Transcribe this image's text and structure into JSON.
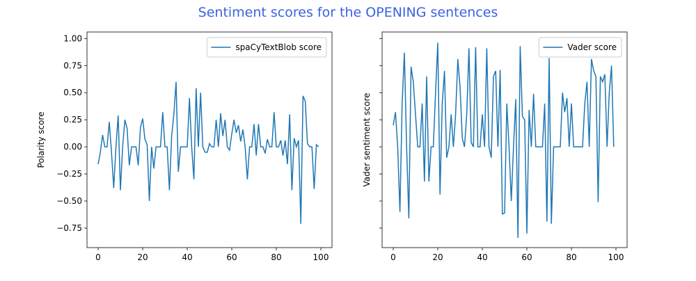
{
  "title": "Sentiment scores for the OPENING sentences",
  "title_color": "#3a63e0",
  "chart_data": [
    {
      "type": "line",
      "ylabel": "Polarity score",
      "x": [
        0,
        1,
        2,
        3,
        4,
        5,
        6,
        7,
        8,
        9,
        10,
        11,
        12,
        13,
        14,
        15,
        16,
        17,
        18,
        19,
        20,
        21,
        22,
        23,
        24,
        25,
        26,
        27,
        28,
        29,
        30,
        31,
        32,
        33,
        34,
        35,
        36,
        37,
        38,
        39,
        40,
        41,
        42,
        43,
        44,
        45,
        46,
        47,
        48,
        49,
        50,
        51,
        52,
        53,
        54,
        55,
        56,
        57,
        58,
        59,
        60,
        61,
        62,
        63,
        64,
        65,
        66,
        67,
        68,
        69,
        70,
        71,
        72,
        73,
        74,
        75,
        76,
        77,
        78,
        79,
        80,
        81,
        82,
        83,
        84,
        85,
        86,
        87,
        88,
        89,
        90,
        91,
        92,
        93,
        94,
        95,
        96,
        97,
        98,
        99
      ],
      "series": [
        {
          "name": "spaCyTextBlob score",
          "color": "#1f77b4",
          "values": [
            -0.16,
            -0.05,
            0.11,
            0.0,
            0.0,
            0.23,
            -0.05,
            -0.38,
            0.0,
            0.29,
            -0.4,
            0.0,
            0.25,
            0.17,
            -0.17,
            0.0,
            0.0,
            0.0,
            -0.17,
            0.18,
            0.26,
            0.07,
            0.02,
            -0.5,
            0.0,
            -0.2,
            0.0,
            0.0,
            0.0,
            0.32,
            0.0,
            0.0,
            -0.4,
            0.1,
            0.3,
            0.6,
            -0.23,
            0.0,
            0.0,
            0.0,
            0.0,
            0.45,
            0.0,
            -0.3,
            0.54,
            0.0,
            0.5,
            0.0,
            -0.05,
            -0.05,
            0.03,
            0.0,
            0.0,
            0.25,
            0.0,
            0.31,
            0.1,
            0.25,
            0.0,
            -0.03,
            0.12,
            0.25,
            0.13,
            0.2,
            0.05,
            0.16,
            0.0,
            -0.3,
            0.0,
            0.0,
            0.21,
            -0.08,
            0.21,
            0.0,
            0.0,
            -0.06,
            0.07,
            0.0,
            0.0,
            0.32,
            0.0,
            0.0,
            0.06,
            -0.08,
            0.06,
            -0.16,
            0.3,
            -0.4,
            0.08,
            0.0,
            0.06,
            -0.71,
            0.47,
            0.42,
            0.03,
            0.0,
            0.0,
            -0.39,
            0.02,
            0.0
          ]
        }
      ],
      "xlim": [
        -5,
        105
      ],
      "xticks": [
        0,
        20,
        40,
        60,
        80,
        100
      ],
      "ylim": [
        -0.93,
        1.06
      ],
      "yticks": [
        {
          "value": -0.75,
          "label": "−0.75"
        },
        {
          "value": -0.5,
          "label": "−0.50"
        },
        {
          "value": -0.25,
          "label": "−0.25"
        },
        {
          "value": 0,
          "label": "0.00"
        },
        {
          "value": 0.25,
          "label": "0.25"
        },
        {
          "value": 0.5,
          "label": "0.50"
        },
        {
          "value": 0.75,
          "label": "0.75"
        },
        {
          "value": 1,
          "label": "1.00"
        }
      ],
      "ytick_labels": true,
      "legend": "upper right"
    },
    {
      "type": "line",
      "ylabel": "Vader sentiment score",
      "x": [
        0,
        1,
        2,
        3,
        4,
        5,
        6,
        7,
        8,
        9,
        10,
        11,
        12,
        13,
        14,
        15,
        16,
        17,
        18,
        19,
        20,
        21,
        22,
        23,
        24,
        25,
        26,
        27,
        28,
        29,
        30,
        31,
        32,
        33,
        34,
        35,
        36,
        37,
        38,
        39,
        40,
        41,
        42,
        43,
        44,
        45,
        46,
        47,
        48,
        49,
        50,
        51,
        52,
        53,
        54,
        55,
        56,
        57,
        58,
        59,
        60,
        61,
        62,
        63,
        64,
        65,
        66,
        67,
        68,
        69,
        70,
        71,
        72,
        73,
        74,
        75,
        76,
        77,
        78,
        79,
        80,
        81,
        82,
        83,
        84,
        85,
        86,
        87,
        88,
        89,
        90,
        91,
        92,
        93,
        94,
        95,
        96,
        97,
        98,
        99
      ],
      "series": [
        {
          "name": "Vader score",
          "color": "#1f77b4",
          "values": [
            0.2,
            0.32,
            0.0,
            -0.6,
            0.4,
            0.87,
            0.0,
            -0.66,
            0.74,
            0.6,
            0.3,
            0.0,
            0.0,
            0.4,
            -0.32,
            0.65,
            -0.32,
            0.0,
            0.0,
            0.5,
            0.96,
            -0.44,
            0.4,
            0.7,
            -0.1,
            0.0,
            0.3,
            0.0,
            0.3,
            0.81,
            0.55,
            0.08,
            0.0,
            0.3,
            0.91,
            0.04,
            0.0,
            0.92,
            0.0,
            0.0,
            0.3,
            0.0,
            0.91,
            0.0,
            -0.1,
            0.65,
            0.7,
            0.0,
            0.71,
            -0.62,
            -0.61,
            0.4,
            0.0,
            -0.5,
            0.0,
            0.44,
            -0.84,
            0.93,
            0.28,
            0.25,
            -0.8,
            0.34,
            0.0,
            0.49,
            0.0,
            0.0,
            0.0,
            0.0,
            0.4,
            -0.69,
            0.82,
            -0.71,
            0.0,
            0.0,
            0.0,
            0.0,
            0.5,
            0.32,
            0.45,
            0.0,
            0.4,
            0.0,
            0.0,
            0.0,
            0.0,
            0.0,
            0.4,
            0.6,
            0.0,
            0.81,
            0.7,
            0.65,
            -0.51,
            0.65,
            0.6,
            0.67,
            0.0,
            0.5,
            0.75,
            0.0
          ]
        }
      ],
      "xlim": [
        -5,
        105
      ],
      "xticks": [
        0,
        20,
        40,
        60,
        80,
        100
      ],
      "ylim": [
        -0.93,
        1.06
      ],
      "yticks": [
        -0.75,
        -0.5,
        -0.25,
        0,
        0.25,
        0.5,
        0.75,
        1
      ],
      "ytick_labels": false,
      "legend": "upper right"
    }
  ]
}
